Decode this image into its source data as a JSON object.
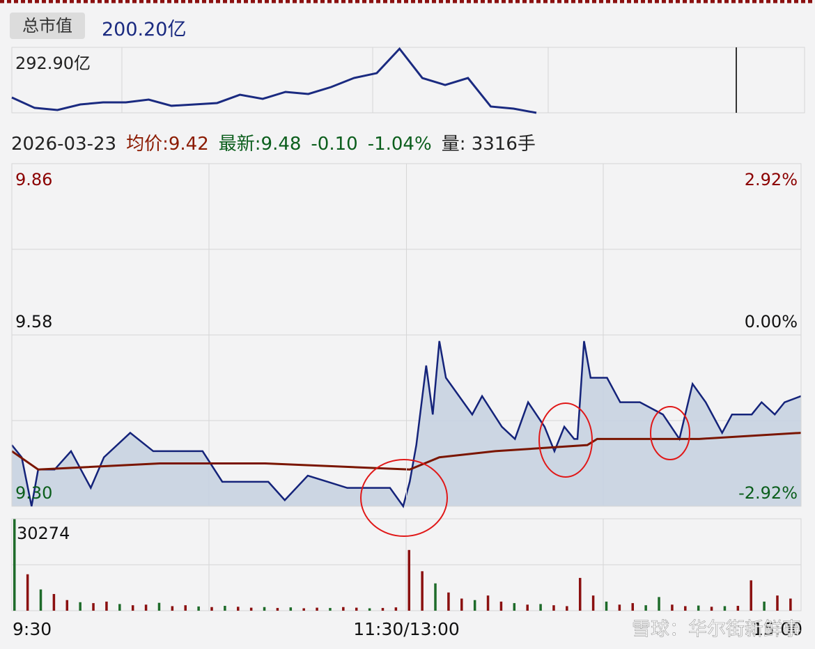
{
  "header": {
    "label": "总市值",
    "value": "200.20亿"
  },
  "quote": {
    "date": "2026-03-23",
    "avg": "均价:9.42",
    "latest": "最新:9.48",
    "change": "-0.10",
    "change_pct": "-1.04%",
    "volume": "量: 3316手"
  },
  "watermark": "雪球：华尔街新鲜事",
  "chart_data": [
    {
      "type": "line",
      "max_label": "292.90亿",
      "color": "#1a2a80",
      "values": [
        220.6,
        205.2,
        202.1,
        210.3,
        213.4,
        213.4,
        217.5,
        208.3,
        210.3,
        212.4,
        224.7,
        218.6,
        228.9,
        225.8,
        236.1,
        249.5,
        256.7,
        292.9,
        249.5,
        239.2,
        249.5,
        207.2,
        204.1,
        197.9
      ]
    },
    {
      "type": "line",
      "xlim": [
        0,
        240
      ],
      "xticks": [
        {
          "value": 0,
          "label": "9:30"
        },
        {
          "value": 120,
          "label": "11:30/13:00"
        },
        {
          "value": 240,
          "label": "15:00"
        }
      ],
      "ylim": [
        9.3,
        9.86
      ],
      "yticks": [
        {
          "value": 9.3,
          "label": "9.30"
        },
        9.58,
        9.86
      ],
      "y2lim": [
        -2.92,
        2.92
      ],
      "y2ticks": [
        {
          "value": -2.92,
          "label": "-2.92%"
        },
        {
          "value": 0,
          "label": "0.00%"
        },
        {
          "value": 2.92,
          "label": "2.92%"
        }
      ],
      "up_color": "#8b0000",
      "down_color": "#0b5e1c",
      "series": [
        {
          "color": "#14237a",
          "fill": "#c8d3e1",
          "x": [
            0,
            3,
            6,
            8,
            13,
            18,
            24,
            28,
            36,
            43,
            58,
            64,
            78,
            83,
            90,
            96,
            102,
            115,
            119,
            121,
            123,
            126,
            128,
            130,
            132,
            136,
            140,
            143,
            149,
            153,
            157,
            162,
            165,
            168,
            171,
            172,
            174,
            176,
            181,
            185,
            191,
            198,
            203,
            207,
            211,
            216,
            219,
            225,
            228,
            232,
            235,
            240
          ],
          "values": [
            9.4,
            9.38,
            9.3,
            9.36,
            9.36,
            9.39,
            9.33,
            9.38,
            9.42,
            9.39,
            9.39,
            9.34,
            9.34,
            9.31,
            9.35,
            9.34,
            9.33,
            9.33,
            9.3,
            9.34,
            9.4,
            9.53,
            9.45,
            9.57,
            9.51,
            9.48,
            9.45,
            9.48,
            9.43,
            9.41,
            9.47,
            9.43,
            9.39,
            9.43,
            9.41,
            9.41,
            9.57,
            9.51,
            9.51,
            9.47,
            9.47,
            9.45,
            9.41,
            9.5,
            9.47,
            9.42,
            9.45,
            9.45,
            9.47,
            9.45,
            9.47,
            9.48
          ]
        },
        {
          "color": "#7a1500",
          "x": [
            0,
            8,
            45,
            77,
            121,
            130,
            147,
            175,
            178,
            209,
            240
          ],
          "values": [
            9.39,
            9.36,
            9.37,
            9.37,
            9.36,
            9.38,
            9.39,
            9.4,
            9.41,
            9.41,
            9.42
          ]
        }
      ]
    },
    {
      "type": "bar",
      "xlim": [
        0,
        240
      ],
      "ylim": [
        0,
        30274
      ],
      "yticks": [
        30274
      ],
      "values": [
        30274,
        12000,
        7000,
        5500,
        3500,
        2800,
        2500,
        3000,
        2200,
        1800,
        2000,
        2600,
        1500,
        1800,
        1400,
        1200,
        1600,
        1300,
        1000,
        1200,
        900,
        1100,
        800,
        1000,
        900,
        1200,
        1000,
        800,
        900,
        1100,
        20000,
        13000,
        9000,
        6000,
        4000,
        3500,
        5000,
        3000,
        2500,
        2000,
        2200,
        1800,
        1500,
        10800,
        5000,
        3000,
        2000,
        2500,
        1800,
        4500,
        2000,
        1500,
        1700,
        1300,
        1500,
        1600,
        10000,
        3000,
        5000,
        4000
      ],
      "colors": [
        "#1e6b2a",
        "#8b1010",
        "#1e6b2a",
        "#8b1010",
        "#8b1010",
        "#1e6b2a",
        "#8b1010",
        "#8b1010",
        "#1e6b2a",
        "#8b1010",
        "#8b1010",
        "#1e6b2a",
        "#8b1010",
        "#8b1010",
        "#1e6b2a",
        "#8b1010",
        "#1e6b2a",
        "#8b1010",
        "#8b1010",
        "#1e6b2a",
        "#8b1010",
        "#1e6b2a",
        "#8b1010",
        "#8b1010",
        "#1e6b2a",
        "#8b1010",
        "#8b1010",
        "#1e6b2a",
        "#8b1010",
        "#8b1010",
        "#8b1010",
        "#8b1010",
        "#1e6b2a",
        "#8b1010",
        "#8b1010",
        "#1e6b2a",
        "#8b1010",
        "#8b1010",
        "#1e6b2a",
        "#8b1010",
        "#1e6b2a",
        "#8b1010",
        "#8b1010",
        "#8b1010",
        "#8b1010",
        "#1e6b2a",
        "#8b1010",
        "#8b1010",
        "#1e6b2a",
        "#1e6b2a",
        "#8b1010",
        "#8b1010",
        "#1e6b2a",
        "#8b1010",
        "#1e6b2a",
        "#8b1010",
        "#8b1010",
        "#1e6b2a",
        "#8b1010",
        "#8b1010"
      ]
    }
  ]
}
